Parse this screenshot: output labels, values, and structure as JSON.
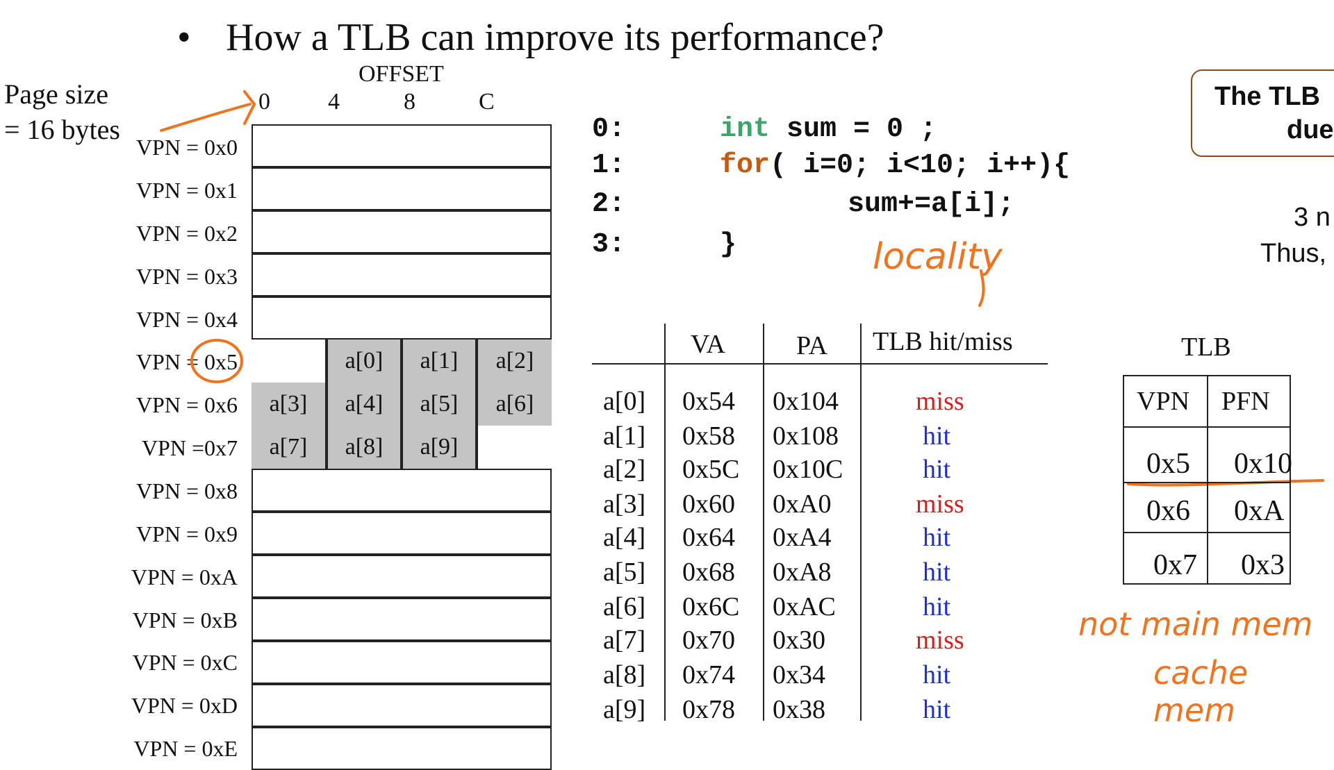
{
  "title": {
    "bullet": "•",
    "text": "How a TLB can improve its performance?"
  },
  "page_size": {
    "line1": "Page size",
    "line2": "= 16 bytes"
  },
  "offset": {
    "label": "OFFSET",
    "ticks": [
      "0",
      "4",
      "8",
      "C"
    ]
  },
  "vpn_rows": [
    "VPN = 0x0",
    "VPN = 0x1",
    "VPN = 0x2",
    "VPN = 0x3",
    "VPN = 0x4",
    "VPN = 0x5",
    "VPN = 0x6",
    "VPN =0x7",
    "VPN = 0x8",
    "VPN = 0x9",
    "VPN = 0xA",
    "VPN = 0xB",
    "VPN = 0xC",
    "VPN = 0xD",
    "VPN = 0xE"
  ],
  "array_cells": {
    "row5": [
      "",
      "a[0]",
      "a[1]",
      "a[2]"
    ],
    "row6": [
      "a[3]",
      "a[4]",
      "a[5]",
      "a[6]"
    ],
    "row7": [
      "a[7]",
      "a[8]",
      "a[9]",
      ""
    ]
  },
  "code": {
    "line_numbers": [
      "0:",
      "1:",
      "2:",
      "3:"
    ],
    "l0_type": "int",
    "l0_rest": " sum = 0 ;",
    "l1_kw": "for",
    "l1_rest": "( i=0; i<10; i++){",
    "l2": "sum+=a[i];",
    "l3": "}"
  },
  "annotations": {
    "locality": "locality",
    "note1": "not main mem",
    "note2": "cache mem"
  },
  "va_table": {
    "headers": [
      "VA",
      "PA",
      "TLB hit/miss"
    ],
    "rows": [
      {
        "elem": "a[0]",
        "va": "0x54",
        "pa": "0x104",
        "result": "miss"
      },
      {
        "elem": "a[1]",
        "va": "0x58",
        "pa": "0x108",
        "result": "hit"
      },
      {
        "elem": "a[2]",
        "va": "0x5C",
        "pa": "0x10C",
        "result": "hit"
      },
      {
        "elem": "a[3]",
        "va": "0x60",
        "pa": "0xA0",
        "result": "miss"
      },
      {
        "elem": "a[4]",
        "va": "0x64",
        "pa": "0xA4",
        "result": "hit"
      },
      {
        "elem": "a[5]",
        "va": "0x68",
        "pa": "0xA8",
        "result": "hit"
      },
      {
        "elem": "a[6]",
        "va": "0x6C",
        "pa": "0xAC",
        "result": "hit"
      },
      {
        "elem": "a[7]",
        "va": "0x70",
        "pa": "0x30",
        "result": "miss"
      },
      {
        "elem": "a[8]",
        "va": "0x74",
        "pa": "0x34",
        "result": "hit"
      },
      {
        "elem": "a[9]",
        "va": "0x78",
        "pa": "0x38",
        "result": "hit"
      }
    ]
  },
  "tlb": {
    "title": "TLB",
    "headers": [
      "VPN",
      "PFN"
    ],
    "rows": [
      [
        "0x5",
        "0x10"
      ],
      [
        "0x6",
        "0xA"
      ],
      [
        "0x7",
        "0x3"
      ]
    ]
  },
  "side_note": {
    "box_line1": "The TLB",
    "box_line2": "due",
    "text1": "3 n",
    "text2": "Thus,"
  },
  "colors": {
    "miss": "#d02020",
    "hit": "#1c2fe0",
    "keyword": "#c55a11",
    "type": "#3fa46a",
    "ink": "#f07320",
    "cell_fill": "#c4c4c4"
  }
}
